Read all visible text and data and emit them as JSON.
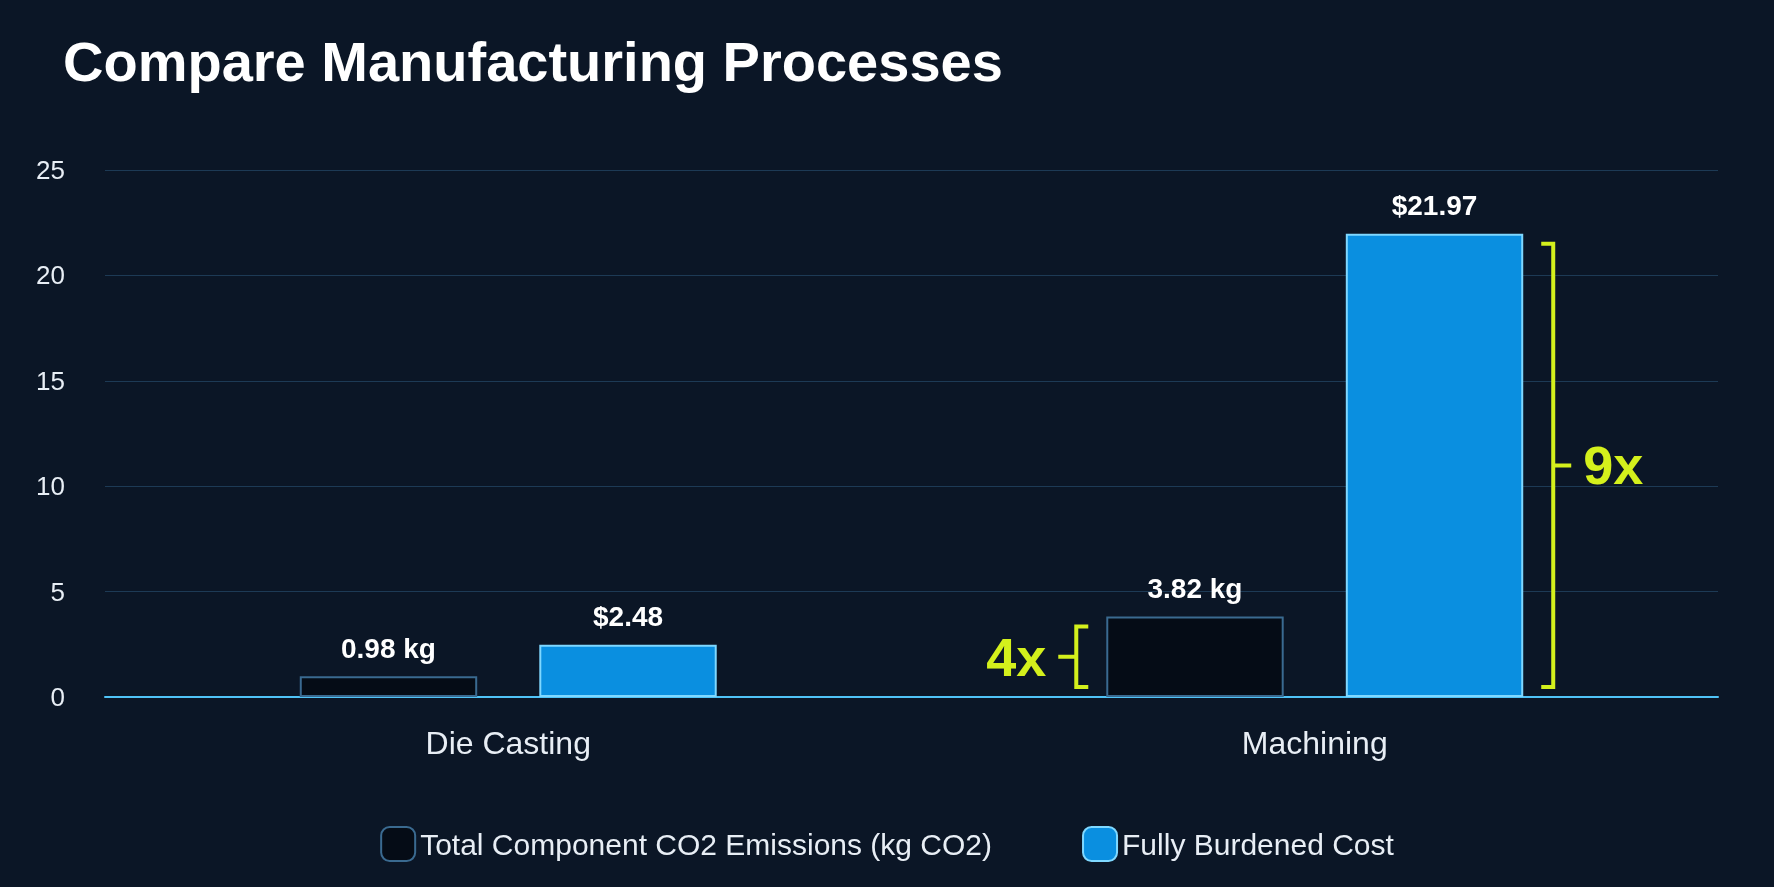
{
  "chart_data": {
    "type": "bar",
    "title": "Compare Manufacturing Processes",
    "categories": [
      "Die Casting",
      "Machining"
    ],
    "series": [
      {
        "name": "Total Component CO2 Emissions (kg CO2)",
        "color": "#050c16",
        "values": [
          0.98,
          3.82
        ],
        "value_labels": [
          "0.98 kg",
          "3.82 kg"
        ]
      },
      {
        "name": "Fully Burdened Cost",
        "color": "#0a8fe0",
        "values": [
          2.48,
          21.97
        ],
        "value_labels": [
          "$2.48",
          "$21.97"
        ]
      }
    ],
    "ylim": [
      0,
      25
    ],
    "yticks": [
      0,
      5,
      10,
      15,
      20,
      25
    ],
    "grid": "y",
    "legend": "bottom",
    "annotations": [
      "4x",
      "9x"
    ]
  }
}
